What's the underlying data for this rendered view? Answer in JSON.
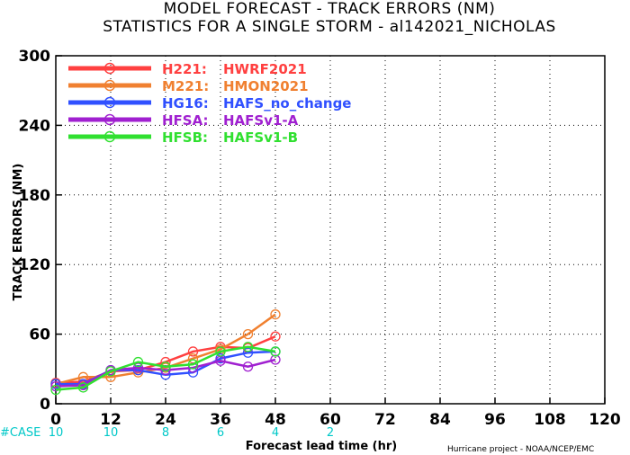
{
  "title_line1": "MODEL FORECAST - TRACK ERRORS (NM)",
  "title_line2": "STATISTICS FOR A SINGLE STORM - al142021_NICHOLAS",
  "footer": "Hurricane project - NOAA/NCEP/EMC",
  "cases": {
    "label": "#CASE",
    "x": [
      0,
      12,
      24,
      36,
      48
    ],
    "labels": [
      "10",
      "10",
      "8",
      "6",
      "4",
      "2"
    ],
    "hours": [
      0,
      12,
      24,
      36,
      48,
      60
    ]
  },
  "chart_data": {
    "type": "line",
    "title": "MODEL FORECAST - TRACK ERRORS (NM)",
    "subtitle": "STATISTICS FOR A SINGLE STORM - al142021_NICHOLAS",
    "xlabel": "Forecast lead time (hr)",
    "ylabel": "TRACK ERRORS (NM)",
    "xlim": [
      0,
      120
    ],
    "ylim": [
      0,
      300
    ],
    "xticks": [
      "0",
      "12",
      "24",
      "36",
      "48",
      "60",
      "72",
      "84",
      "96",
      "108",
      "120"
    ],
    "yticks": [
      "0",
      "60",
      "120",
      "180",
      "240",
      "300"
    ],
    "grid": true,
    "legend_position": "top-left",
    "series": [
      {
        "name": "H221:",
        "desc": "HWRF2021",
        "color": "#ff4040",
        "x": [
          0,
          6,
          12,
          18,
          24,
          30,
          36,
          42,
          48
        ],
        "y": [
          18,
          19,
          28,
          29,
          36,
          45,
          49,
          48,
          58
        ]
      },
      {
        "name": "M221:",
        "desc": "HMON2021",
        "color": "#f08030",
        "x": [
          0,
          6,
          12,
          18,
          24,
          30,
          36,
          42,
          48
        ],
        "y": [
          17,
          23,
          23,
          27,
          31,
          39,
          47,
          60,
          77
        ]
      },
      {
        "name": "HG16:",
        "desc": "HAFS_no_change",
        "color": "#3050ff",
        "x": [
          0,
          6,
          12,
          18,
          24,
          30,
          36,
          42,
          48
        ],
        "y": [
          17,
          17,
          29,
          29,
          25,
          27,
          39,
          44,
          45
        ]
      },
      {
        "name": "HFSA:",
        "desc": "HAFSv1-A",
        "color": "#a020d0",
        "x": [
          0,
          6,
          12,
          18,
          24,
          30,
          36,
          42,
          48
        ],
        "y": [
          15,
          16,
          29,
          31,
          29,
          31,
          37,
          32,
          38
        ]
      },
      {
        "name": "HFSB:",
        "desc": "HAFSv1-B",
        "color": "#30e030",
        "x": [
          0,
          6,
          12,
          18,
          24,
          30,
          36,
          42,
          48
        ],
        "y": [
          12,
          14,
          28,
          36,
          32,
          34,
          45,
          49,
          45
        ]
      }
    ]
  }
}
